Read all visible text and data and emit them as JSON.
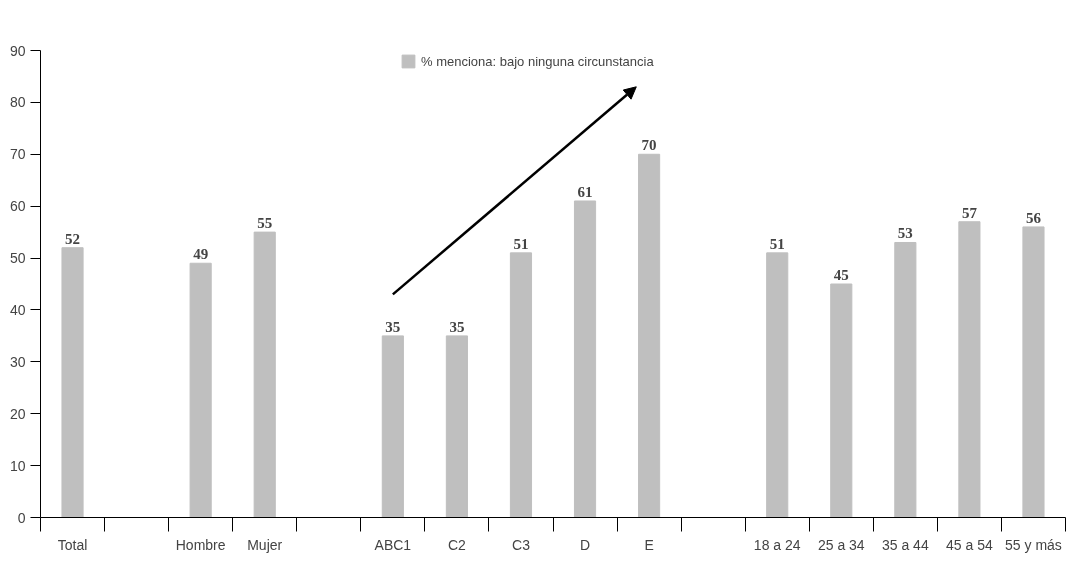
{
  "chart_data": {
    "type": "bar",
    "categories": [
      "Total",
      null,
      "Hombre",
      "Mujer",
      null,
      "ABC1",
      "C2",
      "C3",
      "D",
      "E",
      null,
      "18 a 24",
      "25 a 34",
      "35 a 44",
      "45 a 54",
      "55 y más"
    ],
    "series": [
      {
        "name": "% menciona: bajo ninguna circunstancia",
        "color": "#bfbfbf",
        "values": [
          52,
          null,
          49,
          55,
          null,
          35,
          35,
          51,
          61,
          70,
          null,
          51,
          45,
          53,
          57,
          56
        ]
      }
    ],
    "ylim": [
      0,
      90
    ],
    "yticks": [
      0,
      10,
      20,
      30,
      40,
      50,
      60,
      70,
      80,
      90
    ],
    "grid": false,
    "legend": "top",
    "data_labels": true
  }
}
